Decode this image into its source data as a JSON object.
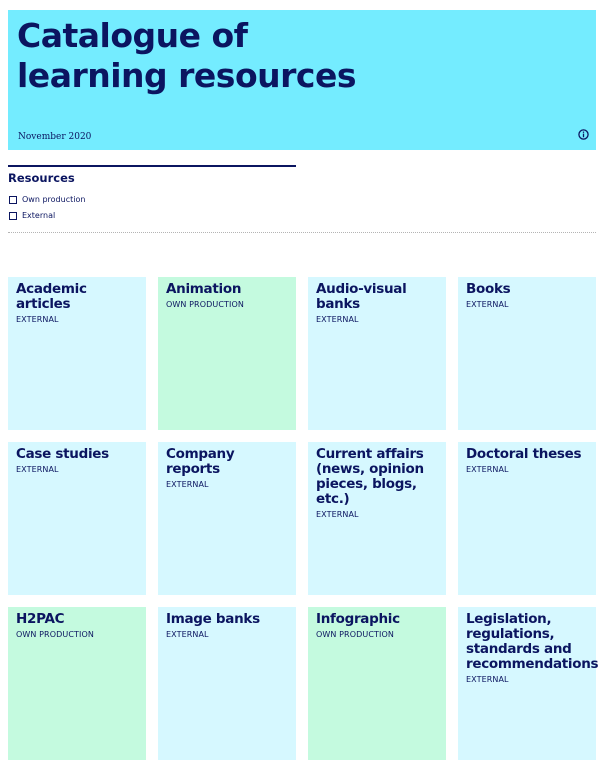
{
  "header": {
    "title_line1": "Catalogue of",
    "title_line2": "learning resources",
    "date": "November 2020",
    "info_icon": "info-circle-icon"
  },
  "filters": {
    "title": "Resources",
    "options": [
      {
        "label": "Own production",
        "checked": false
      },
      {
        "label": "External",
        "checked": false
      }
    ]
  },
  "colors": {
    "header_bg": "#74ecff",
    "external_card": "#d6f8ff",
    "own_card": "#c4fadf",
    "text": "#0b1560"
  },
  "cards": [
    {
      "title": "Academic articles",
      "tag": "EXTERNAL",
      "type": "external"
    },
    {
      "title": "Animation",
      "tag": "OWN PRODUCTION",
      "type": "own"
    },
    {
      "title": "Audio-visual banks",
      "tag": "EXTERNAL",
      "type": "external"
    },
    {
      "title": "Books",
      "tag": "EXTERNAL",
      "type": "external"
    },
    {
      "title": "Case studies",
      "tag": "EXTERNAL",
      "type": "external"
    },
    {
      "title": "Company reports",
      "tag": "EXTERNAL",
      "type": "external"
    },
    {
      "title": "Current affairs (news, opinion pieces, blogs, etc.)",
      "tag": "EXTERNAL",
      "type": "external"
    },
    {
      "title": "Doctoral theses",
      "tag": "EXTERNAL",
      "type": "external"
    },
    {
      "title": "H2PAC",
      "tag": "OWN PRODUCTION",
      "type": "own"
    },
    {
      "title": "Image banks",
      "tag": "EXTERNAL",
      "type": "external"
    },
    {
      "title": "Infographic",
      "tag": "OWN PRODUCTION",
      "type": "own"
    },
    {
      "title": "Legislation, regulations, standards and recommendations",
      "tag": "EXTERNAL",
      "type": "external"
    }
  ]
}
